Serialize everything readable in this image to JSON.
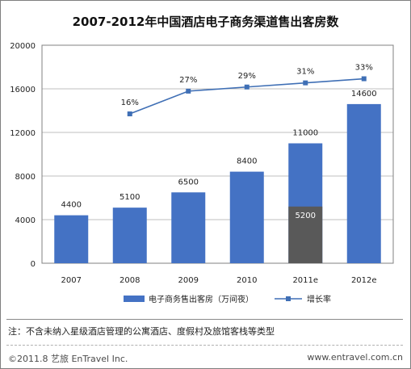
{
  "chart_data": {
    "type": "bar",
    "title": "2007-2012年中国酒店电子商务渠道售出客房数",
    "categories": [
      "2007",
      "2008",
      "2009",
      "2010",
      "2011e",
      "2012e"
    ],
    "series": [
      {
        "name": "电子商务售出客房（万间夜）",
        "type": "bar",
        "color": "#4472c4",
        "values": [
          4400,
          5100,
          6500,
          8400,
          11000,
          14600
        ],
        "labels": [
          "4400",
          "5100",
          "6500",
          "8400",
          "11000",
          "14600"
        ]
      },
      {
        "name": "增长率",
        "type": "line",
        "color": "#3f6fb5",
        "values": [
          null,
          16,
          27,
          29,
          31,
          33
        ],
        "labels": [
          "",
          "16%",
          "27%",
          "29%",
          "31%",
          "33%"
        ]
      }
    ],
    "overlay": {
      "category": "2011e",
      "value": 5200,
      "label": "5200",
      "color": "#595959"
    },
    "yticks": [
      "0",
      "4000",
      "8000",
      "12000",
      "16000",
      "20000"
    ],
    "ylim": [
      0,
      20000
    ],
    "grid": true,
    "legend_position": "bottom"
  },
  "note": "注：不含未纳入星级酒店管理的公寓酒店、度假村及旅馆客栈等类型",
  "footer": {
    "left": "©2011.8 艺旅 EnTravel Inc.",
    "right": "www.entravel.com.cn"
  }
}
